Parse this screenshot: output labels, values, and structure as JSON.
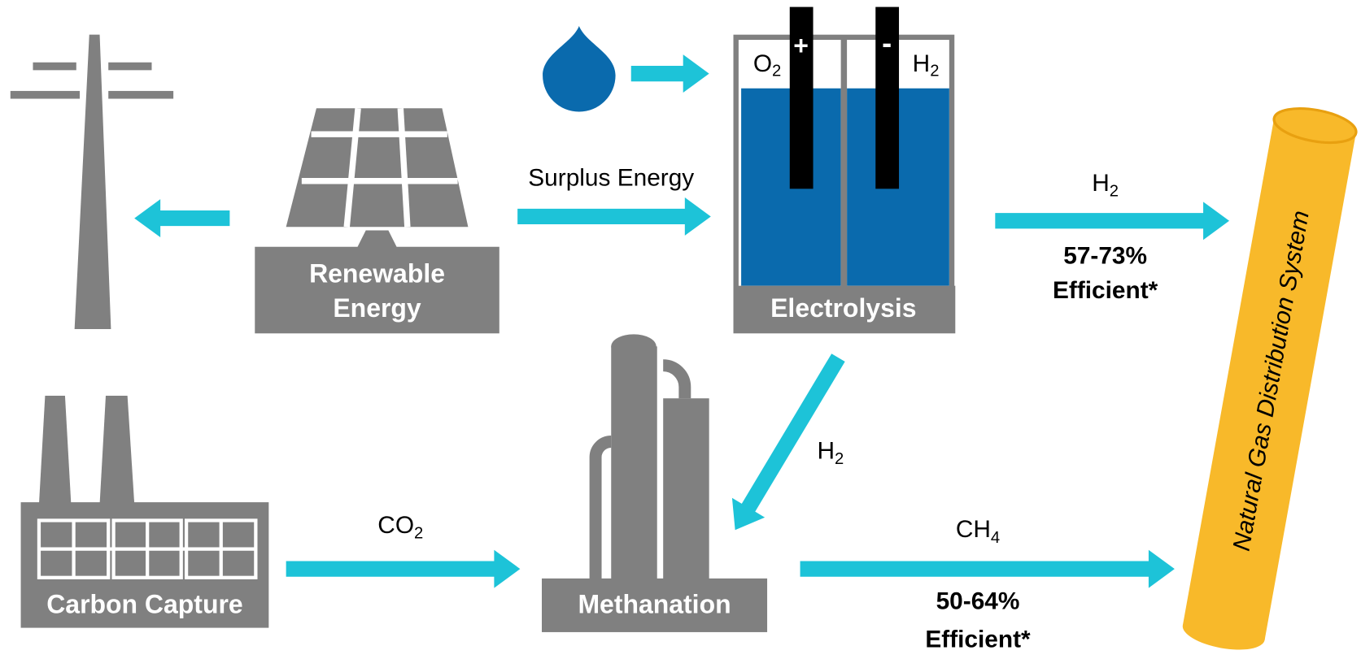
{
  "renewable": {
    "label": [
      "Renewable",
      "Energy"
    ]
  },
  "electrolysis": {
    "label": "Electrolysis",
    "anode": "+",
    "cathode": "-",
    "cell_left": {
      "base": "O",
      "sub": "2"
    },
    "cell_right": {
      "base": "H",
      "sub": "2"
    }
  },
  "carbon_capture": {
    "label": "Carbon Capture"
  },
  "methanation": {
    "label": "Methanation"
  },
  "pipeline": {
    "label": "Natural Gas Distribution System"
  },
  "flows": [
    {
      "label": "Surplus Energy"
    },
    {
      "gas": {
        "base": "H",
        "sub": "2"
      },
      "efficiency": [
        "57-73%",
        "Efficient*"
      ]
    },
    {
      "gas": {
        "base": "H",
        "sub": "2"
      }
    },
    {
      "gas": {
        "base": "CO",
        "sub": "2"
      }
    },
    {
      "gas": {
        "base": "CH",
        "sub": "4"
      },
      "efficiency": [
        "50-64%",
        "Efficient*"
      ]
    }
  ]
}
